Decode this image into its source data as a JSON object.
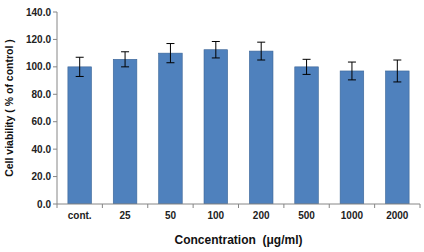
{
  "chart_data": {
    "type": "bar",
    "x_label": "Concentration  (μg/ml)",
    "y_label": "Cell viability ( % of control )",
    "categories": [
      "cont.",
      "25",
      "50",
      "100",
      "200",
      "500",
      "1000",
      "2000"
    ],
    "values": [
      100,
      105.5,
      110,
      112.5,
      111.5,
      100,
      97,
      97
    ],
    "errors": [
      7,
      5.5,
      7,
      6,
      6.5,
      5.5,
      6.5,
      8
    ],
    "color": "#4f81bd",
    "ylim": [
      0,
      140
    ],
    "yticks": [
      {
        "value": 0,
        "label": "0.0"
      },
      {
        "value": 20,
        "label": "20.0"
      },
      {
        "value": 40,
        "label": "40.0"
      },
      {
        "value": 60,
        "label": "60.0"
      },
      {
        "value": 80,
        "label": "80.0"
      },
      {
        "value": 100,
        "label": "100.0"
      },
      {
        "value": 120,
        "label": "120.0"
      },
      {
        "value": 140,
        "label": "140.0"
      }
    ],
    "grid": false
  }
}
